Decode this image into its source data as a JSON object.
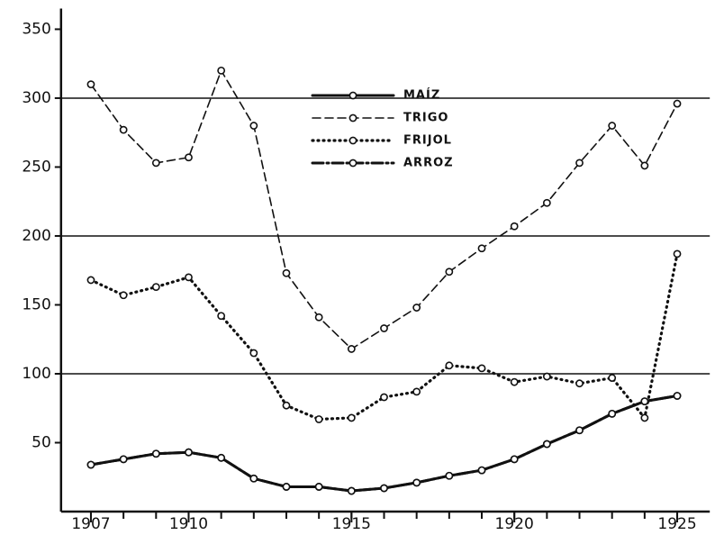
{
  "chart_data": {
    "type": "line",
    "x": [
      1907,
      1908,
      1909,
      1910,
      1911,
      1912,
      1913,
      1914,
      1915,
      1916,
      1917,
      1918,
      1919,
      1920,
      1921,
      1922,
      1923,
      1924,
      1925
    ],
    "series": [
      {
        "name": "MAÍZ",
        "color": "#111111",
        "style": "solid",
        "values": [
          34,
          38,
          42,
          43,
          39,
          24,
          18,
          18,
          15,
          17,
          21,
          26,
          30,
          38,
          49,
          59,
          71,
          80,
          84
        ]
      },
      {
        "name": "TRIGO",
        "color": "#111111",
        "style": "dashed",
        "values": [
          310,
          277,
          253,
          257,
          320,
          280,
          173,
          141,
          118,
          133,
          148,
          174,
          191,
          207,
          224,
          253,
          280,
          251,
          296
        ]
      },
      {
        "name": "FRIJOL",
        "color": "#111111",
        "style": "dotted",
        "values": [
          168,
          157,
          163,
          170,
          142,
          115,
          77,
          67,
          68,
          83,
          87,
          106,
          104,
          94,
          98,
          93,
          97,
          68,
          187
        ]
      },
      {
        "name": "ARROZ",
        "color": "#111111",
        "style": "dashdot",
        "values": [
          34,
          38,
          42,
          43,
          39,
          24,
          18,
          18,
          15,
          17,
          21,
          26,
          30,
          38,
          49,
          59,
          71,
          80,
          84
        ]
      }
    ],
    "xlim": [
      1906,
      1926
    ],
    "xticks": [
      1907,
      1910,
      1915,
      1920,
      1925
    ],
    "xminor_ticks": [
      1907,
      1908,
      1909,
      1910,
      1911,
      1912,
      1913,
      1914,
      1915,
      1916,
      1917,
      1918,
      1919,
      1920,
      1921,
      1922,
      1923,
      1924,
      1925
    ],
    "ylim": [
      0,
      365
    ],
    "yticks": [
      50,
      100,
      150,
      200,
      250,
      300,
      350
    ],
    "grid_values": [
      100,
      200,
      300
    ]
  }
}
